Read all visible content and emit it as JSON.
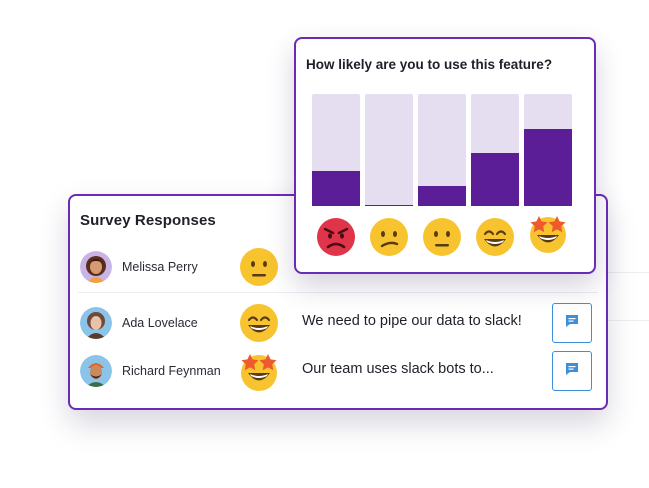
{
  "popup": {
    "title": "How likely are you to use this feature?",
    "options": [
      {
        "icon": "angry-face-icon",
        "level": 0.31
      },
      {
        "icon": "confused-face-icon",
        "level": 0.01
      },
      {
        "icon": "neutral-face-icon",
        "level": 0.18
      },
      {
        "icon": "grinning-face-icon",
        "level": 0.47
      },
      {
        "icon": "star-struck-face-icon",
        "level": 0.69
      }
    ],
    "colors": {
      "bar": "#5b1e96",
      "track": "#e5def0",
      "border": "#6b2bb5"
    }
  },
  "survey": {
    "title": "Survey Responses",
    "rows": [
      {
        "name": "Melissa Perry",
        "reaction_icon": "neutral-face-icon",
        "comment": ""
      },
      {
        "name": "Ada Lovelace",
        "reaction_icon": "grinning-face-icon",
        "comment": "We need to pipe our data to slack!",
        "action_icon": "comment-icon"
      },
      {
        "name": "Richard Feynman",
        "reaction_icon": "star-struck-face-icon",
        "comment": "Our team uses slack bots to...",
        "action_icon": "comment-icon"
      }
    ]
  }
}
